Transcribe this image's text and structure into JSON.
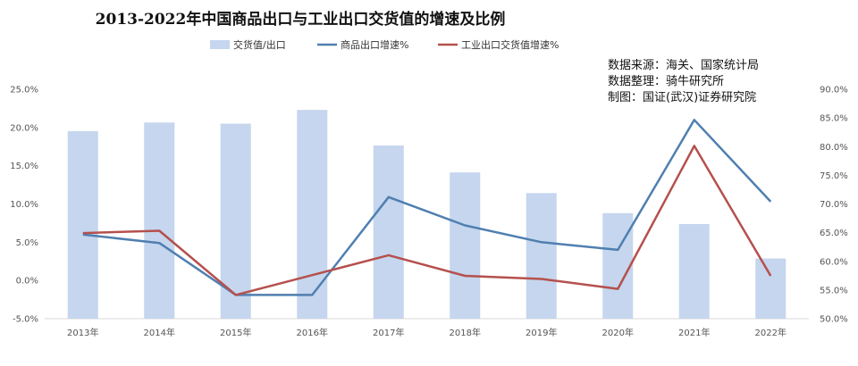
{
  "chart_data": {
    "type": "bar+line",
    "title": "2013-2022年中国商品出口与工业出口交货值的增速及比例",
    "categories": [
      "2013年",
      "2014年",
      "2015年",
      "2016年",
      "2017年",
      "2018年",
      "2019年",
      "2020年",
      "2021年",
      "2022年"
    ],
    "series": [
      {
        "name": "交货值/出口",
        "kind": "bar",
        "axis": "right",
        "color": "#c5d6ee",
        "values": [
          0.827,
          0.842,
          0.84,
          0.864,
          0.802,
          0.755,
          0.719,
          0.684,
          0.665,
          0.605
        ]
      },
      {
        "name": "商品出口增速%",
        "kind": "line",
        "axis": "left",
        "color": "#4f7fb0",
        "values": [
          0.06,
          0.049,
          -0.019,
          -0.019,
          0.109,
          0.072,
          0.05,
          0.04,
          0.21,
          0.103
        ]
      },
      {
        "name": "工业出口交货值增速%",
        "kind": "line",
        "axis": "left",
        "color": "#b5504d",
        "values": [
          0.062,
          0.065,
          -0.019,
          0.007,
          0.033,
          0.006,
          0.002,
          -0.011,
          0.176,
          0.006
        ]
      }
    ],
    "y_left": {
      "min": -0.05,
      "max": 0.25,
      "step": 0.05,
      "format": "percent1"
    },
    "y_right": {
      "min": 0.5,
      "max": 0.9,
      "step": 0.05,
      "format": "percent1"
    },
    "legend_position": "top-center",
    "grid": false
  },
  "annotations": [
    "数据来源：海关、国家统计局",
    "数据整理：骑牛研究所",
    "制图：国证(武汉)证券研究院"
  ]
}
